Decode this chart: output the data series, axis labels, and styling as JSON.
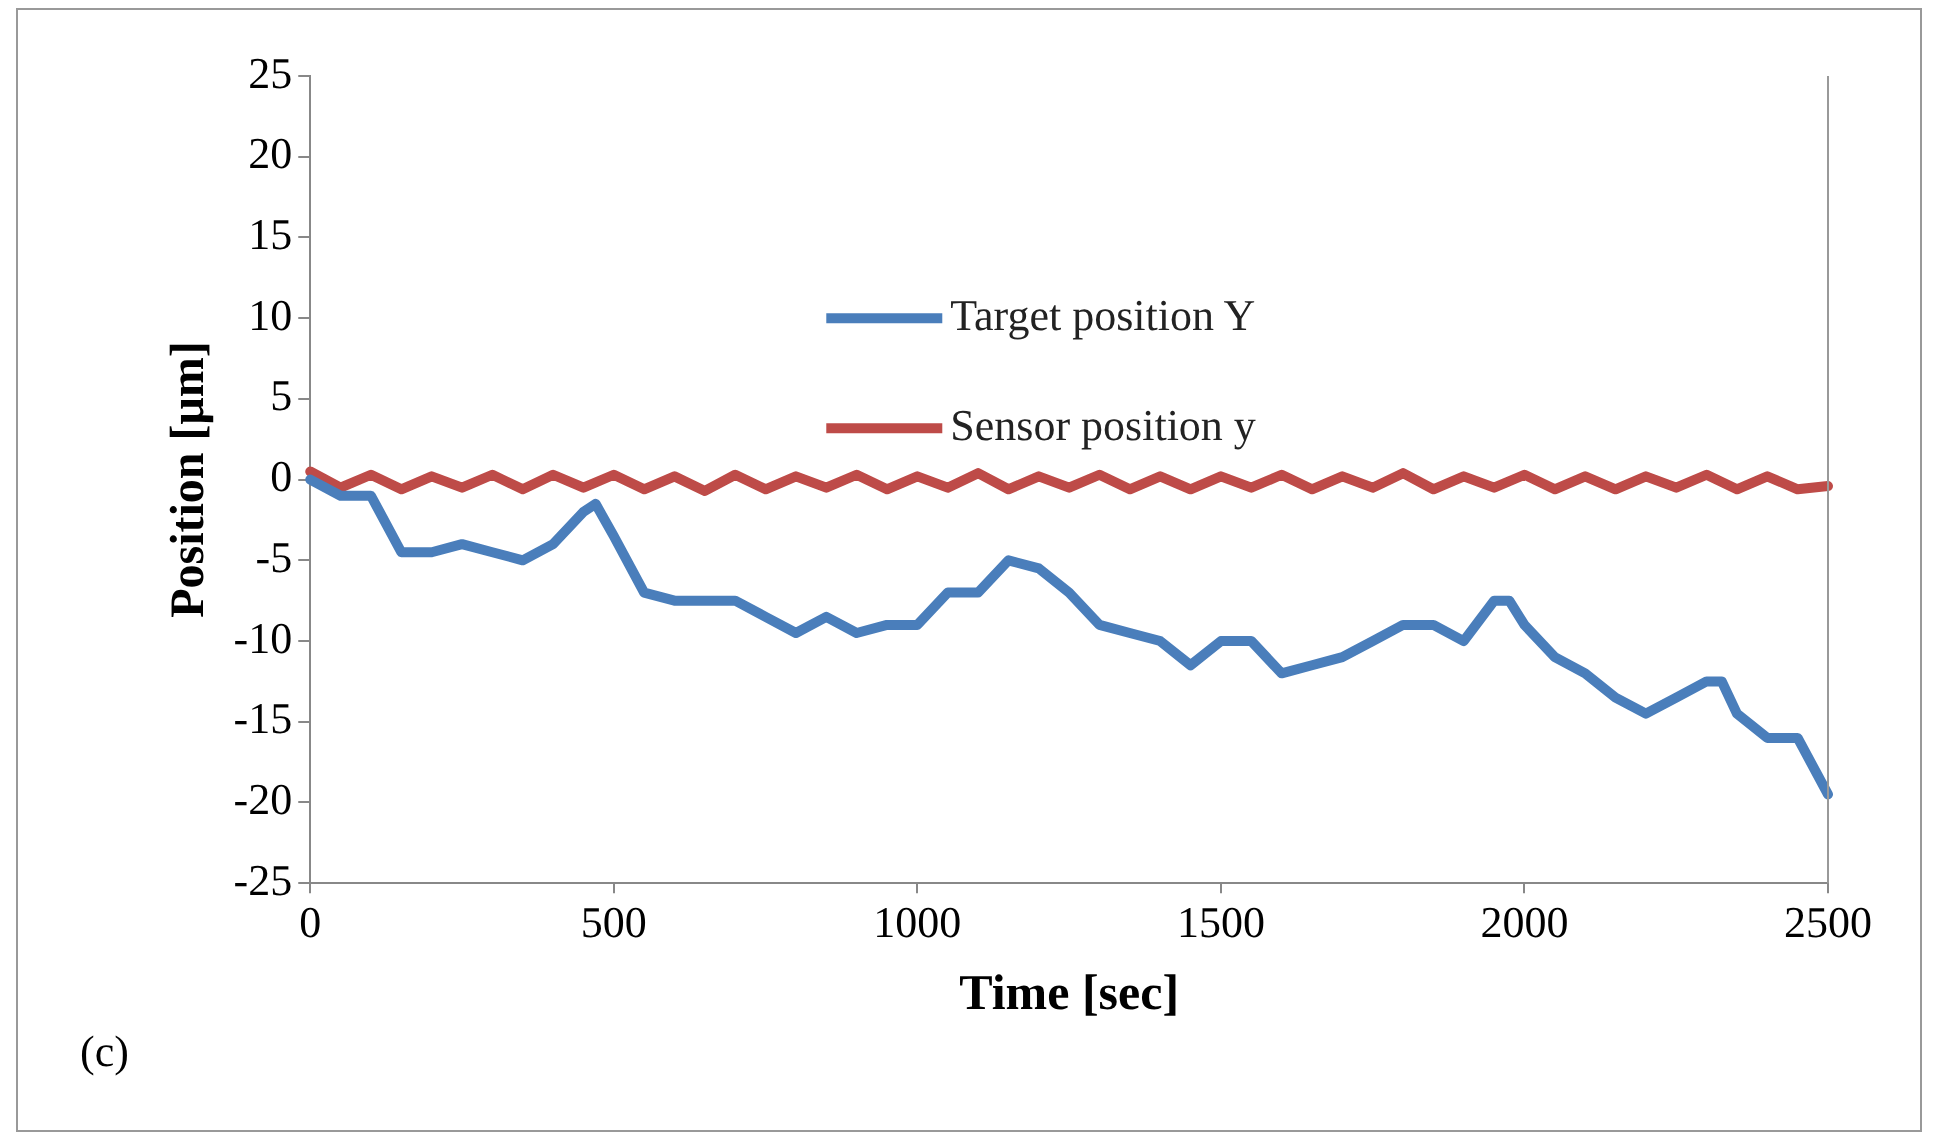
{
  "chart_data": {
    "type": "line",
    "xlabel": "Time [sec]",
    "ylabel": "Position [μm]",
    "annotations": [
      "(c)"
    ],
    "xlim": [
      0,
      2500
    ],
    "xticks": [
      0,
      500,
      1000,
      1500,
      2000,
      2500
    ],
    "ylim": [
      -25,
      25
    ],
    "yticks": [
      -25,
      -20,
      -15,
      -10,
      -5,
      0,
      5,
      10,
      15,
      20,
      25
    ],
    "grid": false,
    "legend": "top",
    "marker": "none",
    "line_style": "solid",
    "series": [
      {
        "name": "Target position Y",
        "color": "#4a7ebb",
        "x": [
          0,
          50,
          100,
          150,
          200,
          250,
          300,
          350,
          400,
          450,
          470,
          500,
          550,
          600,
          650,
          700,
          750,
          800,
          850,
          900,
          950,
          1000,
          1050,
          1100,
          1150,
          1200,
          1250,
          1300,
          1350,
          1400,
          1450,
          1500,
          1550,
          1600,
          1650,
          1700,
          1750,
          1800,
          1850,
          1900,
          1950,
          1975,
          2000,
          2050,
          2100,
          2150,
          2200,
          2250,
          2300,
          2325,
          2350,
          2400,
          2450,
          2500
        ],
        "values": [
          0,
          -1,
          -1,
          -4.5,
          -4.5,
          -4,
          -4.5,
          -5,
          -4,
          -2,
          -1.5,
          -3.5,
          -7,
          -7.5,
          -7.5,
          -7.5,
          -8.5,
          -9.5,
          -8.5,
          -9.5,
          -9,
          -9,
          -7,
          -7,
          -5,
          -5.5,
          -7,
          -9,
          -9.5,
          -10,
          -11.5,
          -10,
          -10,
          -12,
          -11.5,
          -11,
          -10,
          -9,
          -9,
          -10,
          -7.5,
          -7.5,
          -9,
          -11,
          -12,
          -13.5,
          -14.5,
          -13.5,
          -12.5,
          -12.5,
          -14.5,
          -16,
          -16,
          -19.5
        ]
      },
      {
        "name": "Sensor position y",
        "color": "#be4b48",
        "x": [
          0,
          50,
          100,
          150,
          200,
          250,
          300,
          350,
          400,
          450,
          500,
          550,
          600,
          650,
          700,
          750,
          800,
          850,
          900,
          950,
          1000,
          1050,
          1100,
          1150,
          1200,
          1250,
          1300,
          1350,
          1400,
          1450,
          1500,
          1550,
          1600,
          1650,
          1700,
          1750,
          1800,
          1850,
          1900,
          1950,
          2000,
          2050,
          2100,
          2150,
          2200,
          2250,
          2300,
          2350,
          2400,
          2450,
          2500
        ],
        "values": [
          0.5,
          -0.5,
          0.3,
          -0.6,
          0.2,
          -0.5,
          0.3,
          -0.6,
          0.3,
          -0.5,
          0.3,
          -0.6,
          0.2,
          -0.7,
          0.3,
          -0.6,
          0.2,
          -0.5,
          0.3,
          -0.6,
          0.2,
          -0.5,
          0.4,
          -0.6,
          0.2,
          -0.5,
          0.3,
          -0.6,
          0.2,
          -0.6,
          0.2,
          -0.5,
          0.3,
          -0.6,
          0.2,
          -0.5,
          0.4,
          -0.6,
          0.2,
          -0.5,
          0.3,
          -0.6,
          0.2,
          -0.6,
          0.2,
          -0.5,
          0.3,
          -0.6,
          0.2,
          -0.6,
          -0.4
        ]
      }
    ]
  }
}
